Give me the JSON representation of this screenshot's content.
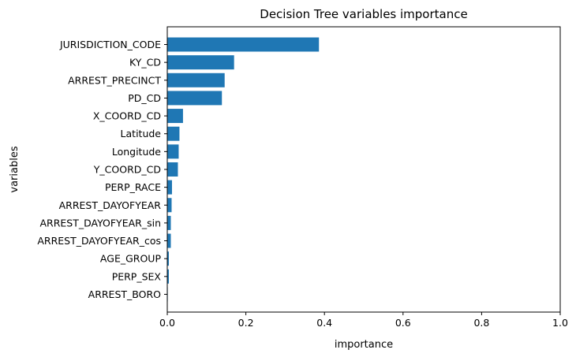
{
  "chart_data": {
    "type": "bar",
    "orientation": "horizontal",
    "title": "Decision Tree variables importance",
    "xlabel": "importance",
    "ylabel": "variables",
    "xlim": [
      0,
      1.0
    ],
    "xticks": [
      "0.0",
      "0.2",
      "0.4",
      "0.6",
      "0.8",
      "1.0"
    ],
    "grid": false,
    "bar_color": "#1f77b4",
    "categories": [
      "JURISDICTION_CODE",
      "KY_CD",
      "ARREST_PRECINCT",
      "PD_CD",
      "X_COORD_CD",
      "Latitude",
      "Longitude",
      "Y_COORD_CD",
      "PERP_RACE",
      "ARREST_DAYOFYEAR",
      "ARREST_DAYOFYEAR_sin",
      "ARREST_DAYOFYEAR_cos",
      "AGE_GROUP",
      "PERP_SEX",
      "ARREST_BORO"
    ],
    "values": [
      0.386,
      0.17,
      0.146,
      0.139,
      0.04,
      0.031,
      0.029,
      0.027,
      0.012,
      0.011,
      0.009,
      0.009,
      0.004,
      0.004,
      0.0005
    ]
  }
}
